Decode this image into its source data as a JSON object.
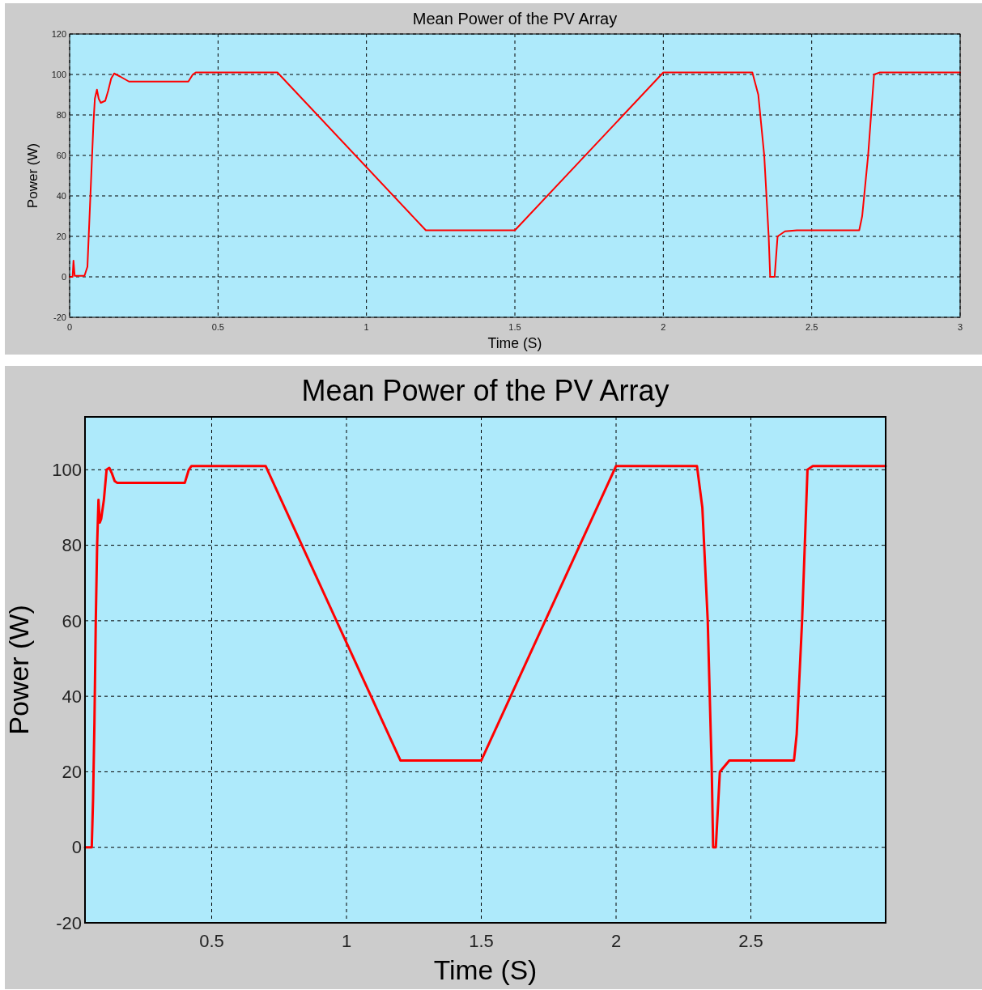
{
  "chart_data": [
    {
      "type": "line",
      "title": "Mean Power of the PV Array",
      "xlabel": "Time (S)",
      "ylabel": "Power (W)",
      "xlim": [
        0,
        3
      ],
      "xticks": [
        0,
        0.5,
        1,
        1.5,
        2,
        2.5,
        3
      ],
      "ylim": [
        -20,
        120
      ],
      "yticks": [
        -20,
        0,
        20,
        40,
        60,
        80,
        100,
        120
      ],
      "grid": true,
      "line_style": "solid",
      "series": [
        {
          "color": "#ff0000",
          "x": [
            0,
            0.01,
            0.013,
            0.017,
            0.05,
            0.06,
            0.07,
            0.08,
            0.085,
            0.092,
            0.098,
            0.105,
            0.12,
            0.13,
            0.14,
            0.15,
            0.17,
            0.2,
            0.4,
            0.415,
            0.425,
            0.7,
            1.2,
            1.5,
            2.0,
            2.3,
            2.32,
            2.34,
            2.355,
            2.36,
            2.375,
            2.385,
            2.41,
            2.45,
            2.66,
            2.67,
            2.69,
            2.71,
            2.73,
            3
          ],
          "values": [
            0,
            0,
            8,
            0.5,
            0.5,
            5,
            40,
            75,
            88,
            92.5,
            88,
            86,
            87,
            92,
            98,
            100.5,
            99,
            96.5,
            96.5,
            100,
            101,
            101,
            23,
            23,
            101,
            101,
            90,
            60,
            20,
            0,
            0,
            20,
            22.5,
            23,
            23,
            30,
            60,
            100,
            101,
            101
          ]
        }
      ]
    },
    {
      "type": "line",
      "title": "Mean Power of the PV Array",
      "xlabel": "Time (S)",
      "ylabel": "Power (W)",
      "xlim": [
        0.03,
        3
      ],
      "xticks": [
        0.5,
        1,
        1.5,
        2,
        2.5
      ],
      "ylim": [
        -20,
        114
      ],
      "yticks": [
        -20,
        0,
        20,
        40,
        60,
        80,
        100
      ],
      "grid": true,
      "line_style": "solid",
      "series": [
        {
          "color": "#ff0000",
          "x": [
            0.03,
            0.055,
            0.06,
            0.065,
            0.07,
            0.075,
            0.08,
            0.085,
            0.09,
            0.1,
            0.11,
            0.12,
            0.13,
            0.14,
            0.15,
            0.17,
            0.2,
            0.3,
            0.4,
            0.415,
            0.425,
            0.7,
            1.2,
            1.5,
            2.0,
            2.3,
            2.32,
            2.34,
            2.355,
            2.36,
            2.37,
            2.385,
            2.42,
            2.66,
            2.67,
            2.69,
            2.71,
            2.73,
            3
          ],
          "values": [
            0,
            0,
            13,
            33,
            60,
            80,
            92,
            86,
            87,
            92,
            100,
            100.5,
            99,
            97,
            96.5,
            96.5,
            96.5,
            96.5,
            96.5,
            100,
            101,
            101,
            23,
            23,
            101,
            101,
            90,
            60,
            20,
            0,
            0,
            20,
            23,
            23,
            30,
            60,
            100,
            101,
            101
          ]
        }
      ]
    }
  ]
}
